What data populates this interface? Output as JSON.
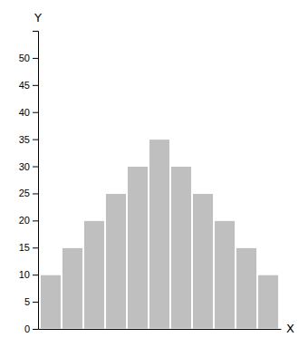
{
  "chart_data": {
    "type": "bar",
    "categories": [
      null,
      null,
      null,
      null,
      null,
      null,
      null,
      null,
      null,
      null,
      null
    ],
    "values": [
      10,
      15,
      20,
      25,
      30,
      35,
      30,
      25,
      20,
      15,
      10
    ],
    "color": "#BFBFBF",
    "xlabel": "X",
    "ylabel": "Y",
    "ylim": [
      0,
      55
    ],
    "yticks": [
      0,
      5,
      10,
      15,
      20,
      25,
      30,
      35,
      40,
      45,
      50
    ],
    "tick_labels": "y",
    "grid": false
  }
}
